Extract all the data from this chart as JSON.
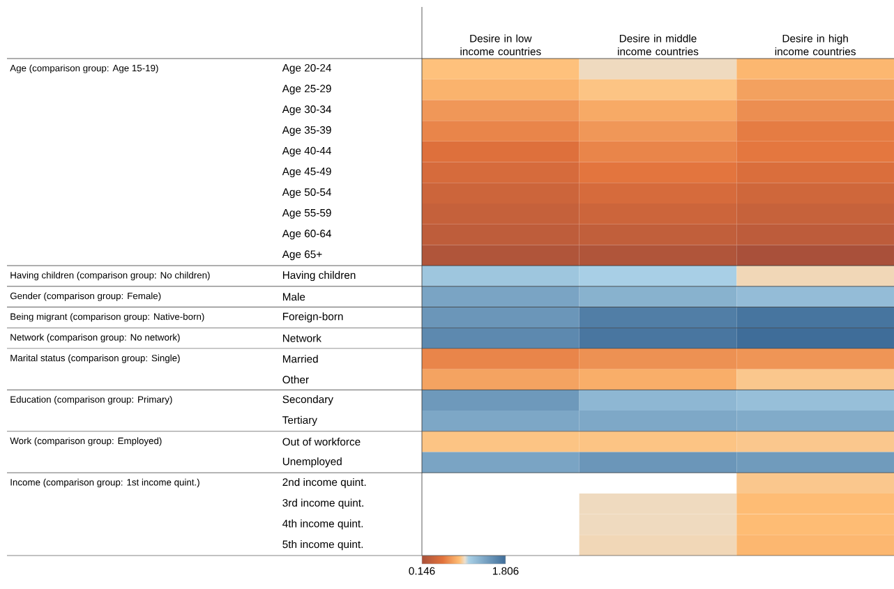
{
  "chart_data": {
    "type": "heatmap",
    "categories": [
      "Desire in low income countries",
      "Desire in middle income countries",
      "Desire in high income countries"
    ],
    "y_categories": [
      "Age 20-24",
      "Age 25-29",
      "Age 30-34",
      "Age 35-39",
      "Age 40-44",
      "Age 45-49",
      "Age 50-54",
      "Age 55-59",
      "Age 60-64",
      "Age 65+",
      "Having children",
      "Male",
      "Foreign-born",
      "Network",
      "Married",
      "Other",
      "Secondary",
      "Tertiary",
      "Out of workforce",
      "Unemployed",
      "2nd income quint.",
      "3rd income quint.",
      "4th income quint.",
      "5th income quint."
    ],
    "y2_categories": [
      "Age (comparison group: Age 15-19)",
      null,
      null,
      null,
      null,
      null,
      null,
      null,
      null,
      null,
      "Having children (comparison group: No children)",
      "Gender (comparison group: Female)",
      "Being migrant (comparison group: Native-born)",
      "Network (comparison group: No network)",
      "Marital status (comparison group: Single)",
      null,
      "Education (comparison group: Primary)",
      null,
      "Work (comparison group: Employed)",
      null,
      "Income (comparison group: 1st income quint.)",
      null,
      null,
      null
    ],
    "cells": [
      [
        0.9,
        0.98,
        0.86
      ],
      [
        0.84,
        0.91,
        0.76
      ],
      [
        0.72,
        0.8,
        0.68
      ],
      [
        0.64,
        0.72,
        0.6
      ],
      [
        0.53,
        0.64,
        0.58
      ],
      [
        0.47,
        0.57,
        0.5
      ],
      [
        0.4,
        0.47,
        0.42
      ],
      [
        0.35,
        0.4,
        0.36
      ],
      [
        0.3,
        0.32,
        0.29
      ],
      [
        0.2,
        0.2,
        0.146
      ],
      [
        1.15,
        1.08,
        0.97
      ],
      [
        1.4,
        1.3,
        1.22
      ],
      [
        1.5,
        1.68,
        1.75
      ],
      [
        1.6,
        1.74,
        1.806
      ],
      [
        0.64,
        0.69,
        0.71
      ],
      [
        0.77,
        0.82,
        0.92
      ],
      [
        1.48,
        1.26,
        1.2
      ],
      [
        1.38,
        1.37,
        1.35
      ],
      [
        0.91,
        0.91,
        0.92
      ],
      [
        1.4,
        1.5,
        1.47
      ],
      [
        null,
        null,
        0.92
      ],
      [
        null,
        0.98,
        0.88
      ],
      [
        null,
        0.98,
        0.88
      ],
      [
        null,
        0.97,
        0.86
      ]
    ],
    "clim": [
      0.146,
      1.806
    ],
    "cticks": [
      0.146,
      1.806
    ]
  }
}
